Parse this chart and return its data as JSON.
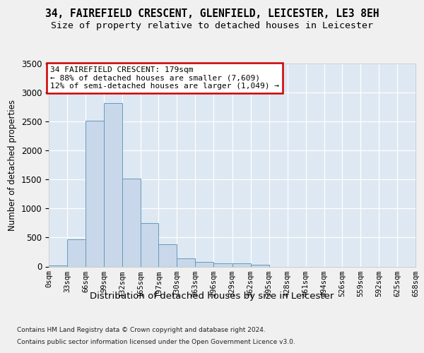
{
  "title_line1": "34, FAIREFIELD CRESCENT, GLENFIELD, LEICESTER, LE3 8EH",
  "title_line2": "Size of property relative to detached houses in Leicester",
  "xlabel": "Distribution of detached houses by size in Leicester",
  "ylabel": "Number of detached properties",
  "bar_color": "#c8d8ea",
  "bar_edge_color": "#6699bb",
  "plot_bg_color": "#dde8f2",
  "fig_bg_color": "#f0f0f0",
  "grid_color": "#ffffff",
  "annotation_text": "34 FAIREFIELD CRESCENT: 179sqm\n← 88% of detached houses are smaller (7,609)\n12% of semi-detached houses are larger (1,049) →",
  "ann_box_color": "#ffffff",
  "ann_border_color": "#cc0000",
  "property_size_sqm": 179,
  "bin_edges": [
    0,
    33,
    66,
    99,
    132,
    165,
    197,
    230,
    263,
    296,
    329,
    362,
    395,
    428,
    461,
    494,
    526,
    559,
    592,
    625,
    658
  ],
  "bar_heights": [
    20,
    470,
    2510,
    2820,
    1520,
    745,
    385,
    145,
    75,
    55,
    55,
    30,
    0,
    0,
    0,
    0,
    0,
    0,
    0,
    0
  ],
  "ylim_max": 3500,
  "yticks": [
    0,
    500,
    1000,
    1500,
    2000,
    2500,
    3000,
    3500
  ],
  "footnote1": "Contains HM Land Registry data © Crown copyright and database right 2024.",
  "footnote2": "Contains public sector information licensed under the Open Government Licence v3.0.",
  "title_fontsize": 10.5,
  "subtitle_fontsize": 9.5,
  "ylabel_fontsize": 8.5,
  "xlabel_fontsize": 9.5,
  "tick_fontsize": 7.5,
  "ann_fontsize": 8.0,
  "footnote_fontsize": 6.5
}
